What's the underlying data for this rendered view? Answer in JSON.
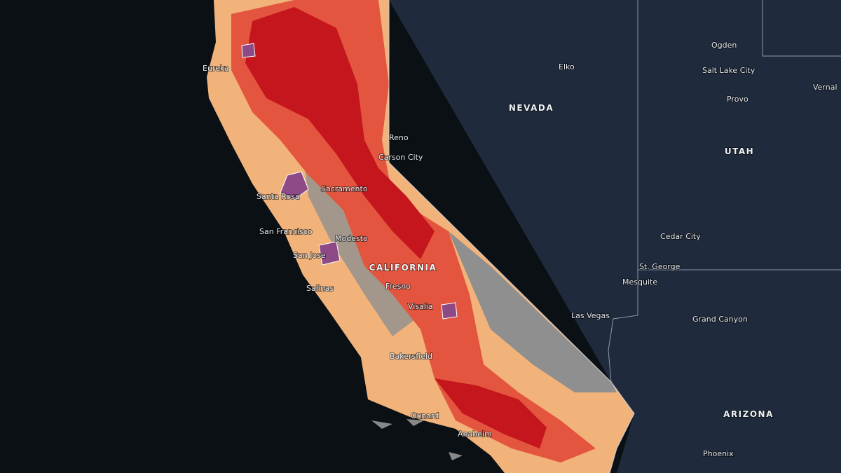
{
  "map": {
    "states": [
      "NEVADA",
      "UTAH",
      "CALIFORNIA",
      "ARIZONA"
    ],
    "cities": [
      "Eureka",
      "Reno",
      "Carson City",
      "Sacramento",
      "Santa Rosa",
      "San Francisco",
      "Modesto",
      "San Jose",
      "Salinas",
      "Fresno",
      "Visalia",
      "Bakersfield",
      "Oxnard",
      "Anaheim",
      "Elko",
      "Ogden",
      "Salt Lake City",
      "Provo",
      "Vernal",
      "Cedar City",
      "St. George",
      "Mesquite",
      "Las Vegas",
      "Grand Canyon",
      "Phoenix"
    ]
  }
}
